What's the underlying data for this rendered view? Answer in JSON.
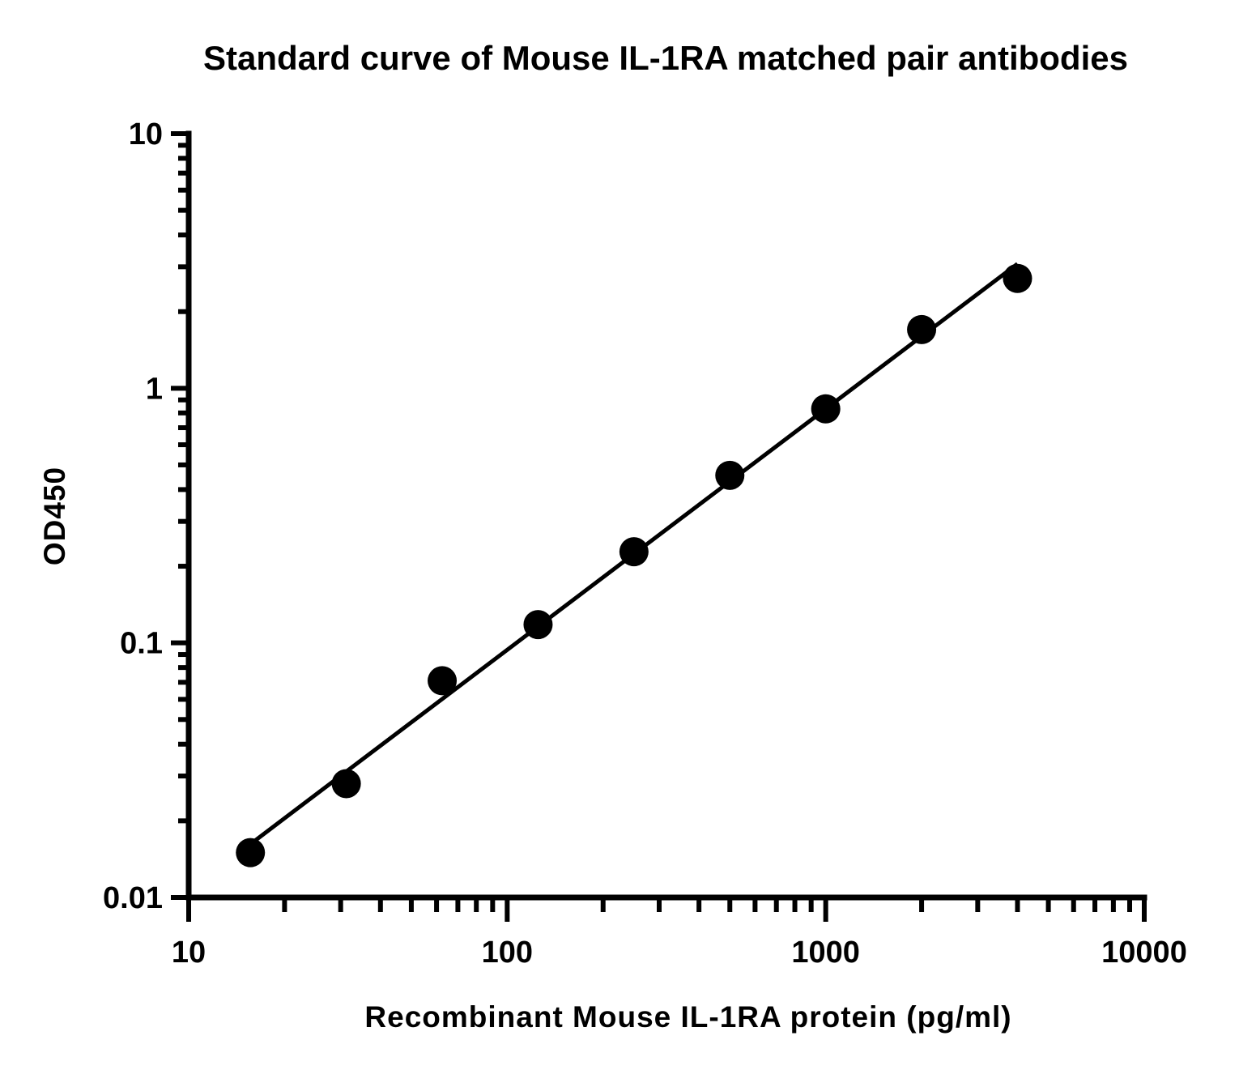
{
  "chart_data": {
    "type": "scatter",
    "title": "Standard curve of Mouse IL-1RA matched pair antibodies",
    "xlabel": "Recombinant Mouse IL-1RA protein (pg/ml)",
    "ylabel": "OD450",
    "xscale": "log",
    "yscale": "log",
    "xlim": [
      10,
      10000
    ],
    "ylim": [
      0.01,
      10
    ],
    "x_ticks": [
      "10",
      "100",
      "1000",
      "10000"
    ],
    "y_ticks": [
      "0.01",
      "0.1",
      "1",
      "10"
    ],
    "grid": false,
    "legend": "none",
    "series": [
      {
        "points": [
          {
            "x": 15.625,
            "y": 0.015
          },
          {
            "x": 31.25,
            "y": 0.028
          },
          {
            "x": 62.5,
            "y": 0.071
          },
          {
            "x": 125,
            "y": 0.118
          },
          {
            "x": 250,
            "y": 0.228
          },
          {
            "x": 500,
            "y": 0.455
          },
          {
            "x": 1000,
            "y": 0.83
          },
          {
            "x": 2000,
            "y": 1.7
          },
          {
            "x": 4000,
            "y": 2.7
          }
        ],
        "fit_line": true,
        "color": "#000000"
      }
    ]
  }
}
